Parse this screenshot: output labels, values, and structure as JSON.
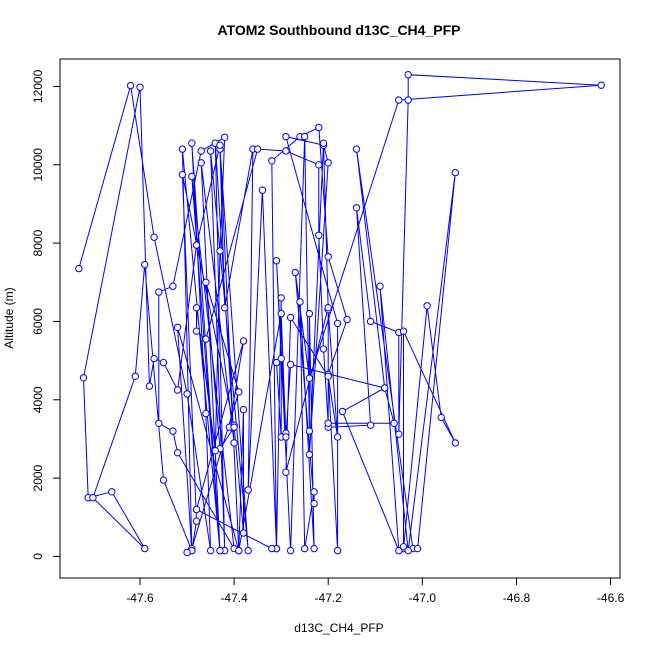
{
  "chart_data": {
    "type": "line",
    "title": "ATOM2 Southbound d13C_CH4_PFP",
    "xlabel": "d13C_CH4_PFP",
    "ylabel": "Altitude (m)",
    "xlim": [
      -47.77,
      -46.58
    ],
    "ylim": [
      -550,
      12700
    ],
    "xticks": [
      -47.6,
      -47.4,
      -47.2,
      -47.0,
      -46.8,
      -46.6
    ],
    "xtick_labels": [
      "-47.6",
      "-47.4",
      "-47.2",
      "-47.0",
      "-46.8",
      "-46.6"
    ],
    "yticks": [
      0,
      2000,
      4000,
      6000,
      8000,
      10000,
      12000
    ],
    "ytick_labels": [
      "0",
      "2000",
      "4000",
      "6000",
      "8000",
      "10000",
      "12000"
    ],
    "grid": false,
    "legend": "none",
    "series": [
      {
        "color": "#0000ff",
        "marker": "open-circle",
        "points": [
          [
            -47.73,
            7350
          ],
          [
            -47.62,
            12020
          ],
          [
            -47.57,
            8150
          ],
          [
            -47.5,
            4150
          ],
          [
            -47.45,
            150
          ],
          [
            -47.46,
            3650
          ],
          [
            -47.49,
            10550
          ],
          [
            -47.43,
            150
          ],
          [
            -47.47,
            10050
          ],
          [
            -47.4,
            2900
          ],
          [
            -47.44,
            10550
          ],
          [
            -47.42,
            150
          ],
          [
            -47.45,
            10350
          ],
          [
            -47.37,
            150
          ],
          [
            -47.43,
            10400
          ],
          [
            -47.42,
            6350
          ],
          [
            -47.36,
            10400
          ],
          [
            -47.37,
            1700
          ],
          [
            -47.34,
            9350
          ],
          [
            -47.31,
            200
          ],
          [
            -47.32,
            10100
          ],
          [
            -47.26,
            10720
          ],
          [
            -47.22,
            10950
          ],
          [
            -47.2,
            7650
          ],
          [
            -47.16,
            6050
          ],
          [
            -47.2,
            4650
          ],
          [
            -47.18,
            150
          ],
          [
            -47.18,
            5950
          ],
          [
            -47.29,
            10720
          ],
          [
            -47.21,
            10500
          ],
          [
            -47.2,
            10050
          ],
          [
            -47.24,
            2600
          ],
          [
            -47.21,
            10550
          ],
          [
            -47.2,
            6300
          ],
          [
            -47.18,
            3050
          ],
          [
            -47.2,
            4600
          ],
          [
            -47.28,
            6100
          ],
          [
            -47.29,
            2150
          ],
          [
            -47.2,
            6350
          ],
          [
            -47.2,
            3300
          ],
          [
            -47.11,
            3350
          ],
          [
            -47.14,
            8900
          ],
          [
            -47.11,
            6000
          ],
          [
            -47.05,
            5720
          ],
          [
            -47.05,
            3120
          ],
          [
            -47.03,
            11650
          ],
          [
            -47.03,
            12300
          ],
          [
            -46.62,
            12030
          ],
          [
            -47.05,
            11650
          ],
          [
            -47.24,
            4550
          ],
          [
            -47.27,
            7250
          ],
          [
            -47.23,
            1350
          ],
          [
            -47.23,
            1650
          ],
          [
            -47.25,
            200
          ],
          [
            -47.26,
            6500
          ],
          [
            -47.23,
            200
          ],
          [
            -47.24,
            6200
          ],
          [
            -47.24,
            3200
          ],
          [
            -47.25,
            10720
          ],
          [
            -47.28,
            150
          ],
          [
            -47.31,
            7550
          ],
          [
            -47.29,
            3150
          ],
          [
            -47.3,
            5050
          ],
          [
            -47.31,
            4950
          ],
          [
            -47.3,
            3050
          ],
          [
            -47.3,
            6600
          ],
          [
            -47.31,
            200
          ],
          [
            -47.32,
            200
          ],
          [
            -47.48,
            1200
          ],
          [
            -47.38,
            5500
          ],
          [
            -47.41,
            3300
          ],
          [
            -47.4,
            3350
          ],
          [
            -47.38,
            600
          ],
          [
            -47.38,
            3750
          ],
          [
            -47.39,
            150
          ],
          [
            -47.52,
            5850
          ],
          [
            -47.49,
            150
          ],
          [
            -47.48,
            900
          ],
          [
            -47.51,
            9750
          ],
          [
            -47.4,
            3300
          ],
          [
            -47.43,
            2750
          ],
          [
            -47.46,
            7000
          ],
          [
            -47.39,
            4200
          ],
          [
            -47.49,
            200
          ],
          [
            -47.51,
            10400
          ],
          [
            -47.43,
            150
          ],
          [
            -47.49,
            9700
          ],
          [
            -47.4,
            200
          ],
          [
            -47.52,
            2650
          ],
          [
            -47.53,
            3200
          ],
          [
            -47.56,
            3400
          ],
          [
            -47.56,
            6750
          ],
          [
            -47.53,
            6900
          ],
          [
            -47.47,
            10350
          ],
          [
            -47.42,
            10700
          ],
          [
            -47.43,
            7800
          ],
          [
            -47.44,
            2700
          ],
          [
            -47.48,
            6350
          ],
          [
            -47.48,
            5750
          ],
          [
            -47.46,
            5550
          ],
          [
            -47.35,
            10400
          ],
          [
            -47.29,
            10350
          ],
          [
            -47.22,
            10000
          ],
          [
            -47.22,
            8200
          ],
          [
            -47.21,
            5300
          ],
          [
            -47.2,
            3400
          ],
          [
            -47.06,
            3400
          ],
          [
            -47.08,
            4300
          ],
          [
            -47.14,
            10400
          ],
          [
            -47.02,
            200
          ],
          [
            -47.04,
            200
          ],
          [
            -46.99,
            6400
          ],
          [
            -46.96,
            3550
          ],
          [
            -46.93,
            2900
          ],
          [
            -47.04,
            5750
          ],
          [
            -47.04,
            250
          ],
          [
            -47.01,
            200
          ],
          [
            -46.93,
            9800
          ],
          [
            -47.03,
            150
          ],
          [
            -47.09,
            6900
          ],
          [
            -47.05,
            150
          ],
          [
            -47.17,
            3700
          ],
          [
            -47.08,
            4300
          ],
          [
            -47.28,
            4900
          ],
          [
            -47.29,
            3050
          ],
          [
            -47.3,
            6200
          ],
          [
            -47.39,
            150
          ],
          [
            -47.43,
            10500
          ],
          [
            -47.48,
            7950
          ],
          [
            -47.52,
            4250
          ],
          [
            -47.55,
            4950
          ],
          [
            -47.57,
            5050
          ],
          [
            -47.58,
            4350
          ],
          [
            -47.6,
            11980
          ],
          [
            -47.72,
            4560
          ],
          [
            -47.71,
            1500
          ],
          [
            -47.66,
            1650
          ],
          [
            -47.59,
            200
          ],
          [
            -47.7,
            1500
          ],
          [
            -47.61,
            4600
          ],
          [
            -47.59,
            7450
          ],
          [
            -47.55,
            1950
          ],
          [
            -47.49,
            150
          ],
          [
            -47.5,
            100
          ]
        ]
      }
    ]
  }
}
